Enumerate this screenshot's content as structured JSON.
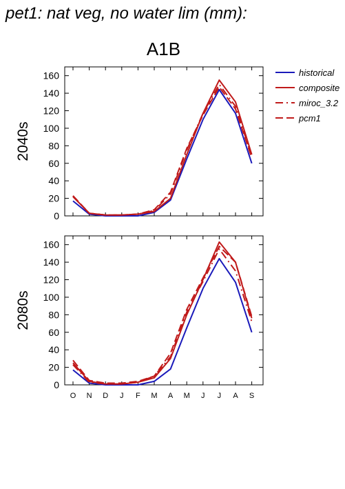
{
  "figure_title": "pet1: nat veg, no water lim (mm):",
  "scenario_title": "A1B",
  "colors": {
    "historical": "#1a1aba",
    "future": "#c01a1a"
  },
  "chart_data": [
    {
      "type": "line",
      "row_label": "2040s",
      "categories": [
        "O",
        "N",
        "D",
        "J",
        "F",
        "M",
        "A",
        "M",
        "J",
        "J",
        "A",
        "S"
      ],
      "ylim": [
        0,
        170
      ],
      "yticks": [
        0,
        20,
        40,
        60,
        80,
        100,
        120,
        140,
        160
      ],
      "series": [
        {
          "name": "historical",
          "style": "solid",
          "color": "#1a1aba",
          "values": [
            17,
            2,
            0,
            0,
            0,
            4,
            18,
            65,
            110,
            144,
            117,
            60
          ]
        },
        {
          "name": "composite",
          "style": "solid",
          "color": "#c01a1a",
          "values": [
            22,
            3,
            1,
            1,
            2,
            5,
            20,
            70,
            117,
            155,
            130,
            70
          ]
        },
        {
          "name": "miroc_3.2",
          "style": "dashdot",
          "color": "#c01a1a",
          "values": [
            22,
            3,
            1,
            1,
            2,
            6,
            25,
            75,
            117,
            150,
            125,
            68
          ]
        },
        {
          "name": "pcm1",
          "style": "dashed",
          "color": "#c01a1a",
          "values": [
            23,
            3,
            1,
            1,
            2,
            7,
            27,
            77,
            115,
            147,
            122,
            66
          ]
        }
      ]
    },
    {
      "type": "line",
      "row_label": "2080s",
      "categories": [
        "O",
        "N",
        "D",
        "J",
        "F",
        "M",
        "A",
        "M",
        "J",
        "J",
        "A",
        "S"
      ],
      "ylim": [
        0,
        170
      ],
      "yticks": [
        0,
        20,
        40,
        60,
        80,
        100,
        120,
        140,
        160
      ],
      "series": [
        {
          "name": "historical",
          "style": "solid",
          "color": "#1a1aba",
          "values": [
            17,
            2,
            0,
            0,
            0,
            4,
            18,
            65,
            110,
            144,
            117,
            60
          ]
        },
        {
          "name": "composite",
          "style": "solid",
          "color": "#c01a1a",
          "values": [
            25,
            4,
            1,
            1,
            3,
            8,
            30,
            80,
            120,
            163,
            140,
            76
          ]
        },
        {
          "name": "miroc_3.2",
          "style": "dashdot",
          "color": "#c01a1a",
          "values": [
            23,
            3,
            1,
            1,
            3,
            10,
            32,
            83,
            118,
            155,
            130,
            72
          ]
        },
        {
          "name": "pcm1",
          "style": "dashed",
          "color": "#c01a1a",
          "values": [
            28,
            5,
            2,
            2,
            4,
            10,
            36,
            86,
            122,
            158,
            140,
            78
          ]
        }
      ]
    }
  ],
  "legend": [
    {
      "label": "historical",
      "style": "solid",
      "color": "#1a1aba"
    },
    {
      "label": "composite",
      "style": "solid",
      "color": "#c01a1a"
    },
    {
      "label": "miroc_3.2",
      "style": "dashdot",
      "color": "#c01a1a"
    },
    {
      "label": "pcm1",
      "style": "dashed",
      "color": "#c01a1a"
    }
  ]
}
